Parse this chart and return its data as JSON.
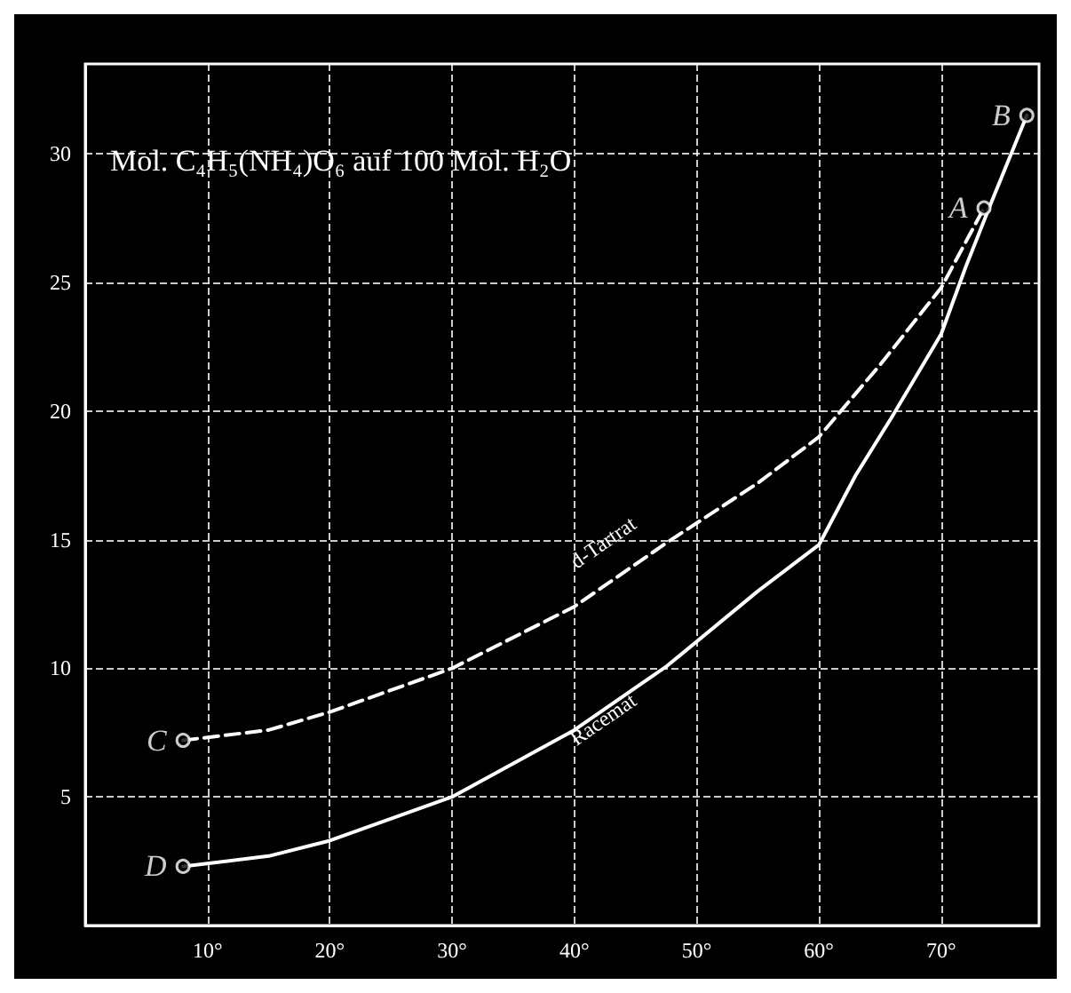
{
  "chart_data": {
    "type": "line",
    "title": "Mol. C₄H₅(NH₄)O₆ auf 100 Mol. H₂O",
    "xlim": [
      0,
      78
    ],
    "ylim": [
      0,
      33.5
    ],
    "xticks": [
      {
        "value": 10,
        "label": "10°"
      },
      {
        "value": 20,
        "label": "20°"
      },
      {
        "value": 30,
        "label": "30°"
      },
      {
        "value": 40,
        "label": "40°"
      },
      {
        "value": 50,
        "label": "50°"
      },
      {
        "value": 60,
        "label": "60°"
      },
      {
        "value": 70,
        "label": "70°"
      }
    ],
    "yticks": [
      5,
      10,
      15,
      20,
      25,
      30
    ],
    "grid": true,
    "legend": false,
    "marker": "none",
    "series": [
      {
        "name": "d-Tartrat",
        "color": "#ffffff",
        "line_style": "dashed",
        "x": [
          8,
          15,
          20,
          30,
          40,
          47.6,
          55,
          60,
          65,
          70,
          73.5
        ],
        "values": [
          7.2,
          7.6,
          8.3,
          10.0,
          12.4,
          14.9,
          17.2,
          19.0,
          21.8,
          24.8,
          27.9
        ]
      },
      {
        "name": "Racemat",
        "color": "#ffffff",
        "line_style": "solid",
        "x": [
          8,
          15,
          20,
          30,
          40,
          47.6,
          55,
          60,
          63,
          66,
          70,
          72,
          74,
          77
        ],
        "values": [
          2.3,
          2.7,
          3.3,
          5.0,
          7.6,
          10.1,
          13.0,
          14.8,
          17.5,
          19.8,
          23.0,
          25.6,
          28.0,
          31.5
        ]
      }
    ],
    "annotations": [
      {
        "text": "D",
        "x": 8,
        "y": 2.3
      },
      {
        "text": "C",
        "x": 8,
        "y": 7.2
      },
      {
        "text": "A",
        "x": 73.5,
        "y": 27.9
      },
      {
        "text": "B",
        "x": 77,
        "y": 31.5
      }
    ]
  }
}
